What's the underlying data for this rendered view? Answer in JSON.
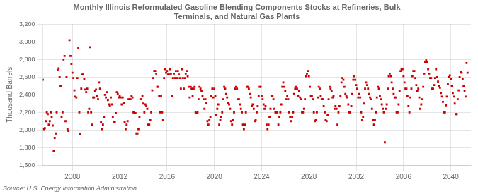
{
  "chart_data": {
    "type": "scatter",
    "title": "Monthly Illinois Reformulated Gasoline Blending Components Stocks at Refineries, Bulk\nTerminals, and Natural Gas Plants",
    "ylabel": "Thousand Barrels",
    "source": "Source: U.S. Energy Information Administration",
    "color": "#CC0000",
    "marker": "square",
    "grid": true,
    "xlim": [
      2005.5,
      2041.7
    ],
    "xticks": [
      2008,
      2012,
      2016,
      2020,
      2024,
      2028,
      2032,
      2036,
      2040
    ],
    "ylim": [
      1600,
      3200
    ],
    "yticks": [
      {
        "value": 1600,
        "label": "1,600"
      },
      {
        "value": 1800,
        "label": "1,800"
      },
      {
        "value": 2000,
        "label": "2,000"
      },
      {
        "value": 2200,
        "label": "2,200"
      },
      {
        "value": 2400,
        "label": "2,400"
      },
      {
        "value": 2600,
        "label": "2,600"
      },
      {
        "value": 2800,
        "label": "2,800"
      },
      {
        "value": 3000,
        "label": "3,000"
      },
      {
        "value": 3200,
        "label": "3,200"
      }
    ],
    "x": [
      2005.5,
      2005.5833333333333,
      2005.6666666666667,
      2005.75,
      2005.8333333333333,
      2005.9166666666667,
      2006,
      2006.0833333333333,
      2006.1666666666667,
      2006.25,
      2006.3333333333333,
      2006.4166666666667,
      2006.5,
      2006.5833333333333,
      2006.6666666666667,
      2006.75,
      2006.8333333333333,
      2006.9166666666667,
      2007,
      2007.0833333333333,
      2007.1666666666667,
      2007.25,
      2007.3333333333333,
      2007.4166666666667,
      2007.5,
      2007.5833333333333,
      2007.6666666666667,
      2007.75,
      2007.8333333333333,
      2007.9166666666667,
      2008,
      2008.0833333333333,
      2008.1666666666667,
      2008.25,
      2008.3333333333333,
      2008.4166666666667,
      2008.5,
      2008.5833333333333,
      2008.6666666666667,
      2008.75,
      2008.8333333333333,
      2008.9166666666667,
      2009,
      2009.0833333333333,
      2009.1666666666667,
      2009.25,
      2009.3333333333333,
      2009.4166666666667,
      2009.5,
      2009.5833333333333,
      2009.6666666666667,
      2009.75,
      2009.8333333333333,
      2009.9166666666667,
      2010,
      2010.0833333333333,
      2010.1666666666667,
      2010.25,
      2010.3333333333333,
      2010.4166666666667,
      2010.5,
      2010.5833333333333,
      2010.6666666666667,
      2010.75,
      2010.8333333333333,
      2010.9166666666667,
      2011,
      2011.0833333333333,
      2011.1666666666667,
      2011.25,
      2011.3333333333333,
      2011.4166666666667,
      2011.5,
      2011.5833333333333,
      2011.6666666666667,
      2011.75,
      2011.8333333333333,
      2011.9166666666667,
      2012,
      2012.0833333333333,
      2012.1666666666667,
      2012.25,
      2012.3333333333333,
      2012.4166666666667,
      2012.5,
      2012.5833333333333,
      2012.6666666666667,
      2012.75,
      2012.8333333333333,
      2012.9166666666667,
      2013,
      2013.0833333333333,
      2013.1666666666667,
      2013.25,
      2013.3333333333333,
      2013.4166666666667,
      2013.5,
      2013.5833333333333,
      2013.6666666666667,
      2013.75,
      2013.8333333333333,
      2013.9166666666667,
      2014,
      2014.0833333333333,
      2014.1666666666667,
      2014.25,
      2014.3333333333333,
      2014.4166666666667,
      2014.5,
      2014.5833333333333,
      2014.6666666666667,
      2014.75,
      2014.8333333333333,
      2014.9166666666667,
      2015,
      2015.0833333333333,
      2015.1666666666667,
      2015.25,
      2015.3333333333333,
      2015.4166666666667,
      2015.5,
      2015.5833333333333,
      2015.6666666666667,
      2015.75,
      2015.8333333333333,
      2015.9166666666667,
      2016,
      2016.0833333333333,
      2016.1666666666667,
      2016.25,
      2016.3333333333333,
      2016.4166666666667,
      2016.5,
      2016.5833333333333,
      2016.6666666666667,
      2016.75,
      2016.8333333333333,
      2016.9166666666667,
      2017,
      2017.0833333333333,
      2017.1666666666667,
      2017.25,
      2017.3333333333333,
      2017.4166666666667,
      2017.5,
      2017.5833333333333,
      2017.6666666666667,
      2017.75,
      2017.8333333333333,
      2017.9166666666667,
      2018,
      2018.0833333333333,
      2018.1666666666667,
      2018.25,
      2018.3333333333333,
      2018.4166666666667,
      2018.5,
      2018.5833333333333,
      2018.6666666666667,
      2018.75,
      2018.8333333333333,
      2018.9166666666667,
      2019,
      2019.0833333333333,
      2019.1666666666667,
      2019.25,
      2019.3333333333333,
      2019.4166666666667,
      2019.5,
      2019.5833333333333,
      2019.6666666666667,
      2019.75,
      2019.8333333333333,
      2019.9166666666667,
      2020,
      2020.0833333333333,
      2020.1666666666667,
      2020.25,
      2020.3333333333333,
      2020.4166666666667,
      2020.5,
      2020.5833333333333,
      2020.6666666666667,
      2020.75,
      2020.8333333333333,
      2020.9166666666667,
      2021,
      2021.0833333333333,
      2021.1666666666667,
      2021.25,
      2021.3333333333333,
      2021.4166666666667,
      2021.5,
      2021.5833333333333,
      2021.6666666666667,
      2021.75,
      2021.8333333333333,
      2021.9166666666667,
      2022,
      2022.0833333333333,
      2022.1666666666667,
      2022.25,
      2022.3333333333333,
      2022.4166666666667,
      2022.5,
      2022.5833333333333,
      2022.6666666666667,
      2022.75,
      2022.8333333333333,
      2022.9166666666667,
      2023,
      2023.0833333333333,
      2023.1666666666667,
      2023.25,
      2023.3333333333333,
      2023.4166666666667,
      2023.5,
      2023.5833333333333,
      2023.6666666666667,
      2023.75,
      2023.8333333333333,
      2023.9166666666667,
      2024,
      2024.0833333333333,
      2024.1666666666667,
      2024.25,
      2024.3333333333333,
      2024.4166666666667,
      2024.5,
      2024.5833333333333,
      2024.6666666666667,
      2024.75,
      2024.8333333333333,
      2024.9166666666667,
      2025,
      2025.0833333333333,
      2025.1666666666667,
      2025.25,
      2025.3333333333333,
      2025.4166666666667,
      2025.5,
      2025.5833333333333,
      2025.6666666666667,
      2025.75,
      2025.8333333333333,
      2025.9166666666667,
      2026,
      2026.0833333333333,
      2026.1666666666667,
      2026.25,
      2026.3333333333333,
      2026.4166666666667,
      2026.5,
      2026.5833333333333,
      2026.6666666666667,
      2026.75,
      2026.8333333333333,
      2026.9166666666667,
      2027,
      2027.0833333333333,
      2027.1666666666667,
      2027.25,
      2027.3333333333333,
      2027.4166666666667,
      2027.5,
      2027.5833333333333,
      2027.6666666666667,
      2027.75,
      2027.8333333333333,
      2027.9166666666667,
      2028,
      2028.0833333333333,
      2028.1666666666667,
      2028.25,
      2028.3333333333333,
      2028.4166666666667,
      2028.5,
      2028.5833333333333,
      2028.6666666666667,
      2028.75,
      2028.8333333333333,
      2028.9166666666667,
      2029,
      2029.0833333333333,
      2029.1666666666667,
      2029.25,
      2029.3333333333333,
      2029.4166666666667,
      2029.5,
      2029.5833333333333,
      2029.6666666666667,
      2029.75,
      2029.8333333333333,
      2029.9166666666667,
      2030,
      2030.0833333333333,
      2030.1666666666667,
      2030.25,
      2030.3333333333333,
      2030.4166666666667,
      2030.5,
      2030.5833333333333,
      2030.6666666666667,
      2030.75,
      2030.8333333333333,
      2030.9166666666667,
      2031,
      2031.0833333333333,
      2031.1666666666667,
      2031.25,
      2031.3333333333333,
      2031.4166666666667,
      2031.5,
      2031.5833333333333,
      2031.6666666666667,
      2031.75,
      2031.8333333333333,
      2031.9166666666667,
      2032,
      2032.0833333333333,
      2032.1666666666667,
      2032.25,
      2032.3333333333333,
      2032.4166666666667,
      2032.5,
      2032.5833333333333,
      2032.6666666666667,
      2032.75,
      2032.8333333333333,
      2032.9166666666667,
      2033,
      2033.0833333333333,
      2033.1666666666667,
      2033.25,
      2033.3333333333333,
      2033.4166666666667,
      2033.5,
      2033.5833333333333,
      2033.6666666666667,
      2033.75,
      2033.8333333333333,
      2033.9166666666667,
      2034,
      2034.0833333333333,
      2034.1666666666667,
      2034.25,
      2034.3333333333333,
      2034.4166666666667,
      2034.5,
      2034.5833333333333,
      2034.6666666666667,
      2034.75,
      2034.8333333333333,
      2034.9166666666667,
      2035,
      2035.0833333333333,
      2035.1666666666667,
      2035.25,
      2035.3333333333333,
      2035.4166666666667,
      2035.5,
      2035.5833333333333,
      2035.6666666666667,
      2035.75,
      2035.8333333333333,
      2035.9166666666667,
      2036,
      2036.0833333333333,
      2036.1666666666667,
      2036.25,
      2036.3333333333333,
      2036.4166666666667,
      2036.5,
      2036.5833333333333,
      2036.6666666666667,
      2036.75,
      2036.8333333333333,
      2036.9166666666667,
      2037,
      2037.0833333333333,
      2037.1666666666667,
      2037.25,
      2037.3333333333333,
      2037.4166666666667,
      2037.5,
      2037.5833333333333,
      2037.6666666666667,
      2037.75,
      2037.8333333333333,
      2037.9166666666667,
      2038,
      2038.0833333333333,
      2038.1666666666667,
      2038.25,
      2038.3333333333333,
      2038.4166666666667,
      2038.5,
      2038.5833333333333,
      2038.6666666666667,
      2038.75,
      2038.8333333333333,
      2038.9166666666667,
      2039,
      2039.0833333333333,
      2039.1666666666667,
      2039.25,
      2039.3333333333333,
      2039.4166666666667,
      2039.5,
      2039.5833333333333,
      2039.6666666666667,
      2039.75,
      2039.8333333333333,
      2039.9166666666667,
      2040,
      2040.0833333333333,
      2040.1666666666667,
      2040.25,
      2040.3333333333333,
      2040.4166666666667,
      2040.5,
      2040.5833333333333,
      2040.6666666666667,
      2040.75,
      2040.8333333333333,
      2040.9166666666667,
      2041,
      2041.0833333333333,
      2041.1666666666667,
      2041.25,
      2041.3333333333333,
      2041.4166666666667
    ],
    "values": [
      2570,
      2010,
      2020,
      2100,
      2200,
      2180,
      2060,
      2100,
      2200,
      2150,
      2050,
      1760,
      1910,
      1960,
      2200,
      2680,
      2700,
      2600,
      2500,
      2150,
      2200,
      2800,
      2840,
      2100,
      2600,
      2010,
      1990,
      3020,
      2840,
      2750,
      2650,
      2590,
      2450,
      2380,
      2370,
      2590,
      2930,
      2200,
      1950,
      2470,
      2630,
      2630,
      2580,
      2460,
      2430,
      2470,
      2200,
      2240,
      2940,
      2200,
      2060,
      2370,
      2370,
      2440,
      2460,
      2390,
      2350,
      2540,
      2470,
      2090,
      2010,
      2060,
      2150,
      2400,
      2370,
      2430,
      2340,
      2290,
      2270,
      2370,
      2290,
      2150,
      2090,
      2090,
      2190,
      2430,
      2410,
      2370,
      2390,
      2370,
      2290,
      2370,
      2310,
      2090,
      2010,
      2060,
      2100,
      2350,
      2350,
      2350,
      2390,
      2370,
      2200,
      2190,
      2190,
      1960,
      1960,
      2010,
      2150,
      2350,
      2350,
      2390,
      2300,
      2200,
      2290,
      2270,
      2240,
      2060,
      2060,
      2110,
      2200,
      2450,
      2590,
      2670,
      2670,
      2640,
      2490,
      2490,
      2390,
      2200,
      2390,
      2200,
      2110,
      2590,
      2690,
      2650,
      2670,
      2630,
      2630,
      2690,
      2640,
      2390,
      2590,
      2640,
      2590,
      2670,
      2590,
      2670,
      2630,
      2590,
      2470,
      2690,
      2590,
      2470,
      2590,
      2640,
      2670,
      2610,
      2490,
      2370,
      2490,
      2470,
      2390,
      2470,
      2490,
      2200,
      2190,
      2200,
      2350,
      2490,
      2470,
      2440,
      2390,
      2350,
      2240,
      2350,
      2310,
      2100,
      2060,
      2110,
      2150,
      2390,
      2470,
      2370,
      2470,
      2390,
      2170,
      2240,
      2290,
      2060,
      2110,
      2150,
      2200,
      2350,
      2490,
      2470,
      2410,
      2370,
      2310,
      2290,
      2240,
      2100,
      2060,
      2110,
      2200,
      2470,
      2490,
      2470,
      2350,
      2350,
      2290,
      2240,
      2200,
      2060,
      2010,
      2060,
      2200,
      2490,
      2490,
      2470,
      2410,
      2370,
      2270,
      2290,
      2240,
      2100,
      2110,
      2200,
      2270,
      2390,
      2490,
      2490,
      2390,
      2350,
      2290,
      2240,
      2270,
      2060,
      2010,
      2060,
      2150,
      2240,
      2390,
      2390,
      2350,
      2240,
      2200,
      2200,
      2200,
      2060,
      2150,
      2200,
      2290,
      2490,
      2540,
      2490,
      2440,
      2350,
      2390,
      2350,
      2200,
      2150,
      2100,
      2150,
      2200,
      2410,
      2470,
      2490,
      2470,
      2390,
      2440,
      2370,
      2350,
      2200,
      2200,
      2240,
      2350,
      2610,
      2640,
      2670,
      2610,
      2490,
      2390,
      2390,
      2350,
      2200,
      2100,
      2110,
      2200,
      2370,
      2490,
      2470,
      2390,
      2350,
      2350,
      2270,
      2200,
      2110,
      2100,
      2170,
      2350,
      2490,
      2470,
      2440,
      2370,
      2390,
      2240,
      2270,
      2240,
      2060,
      2200,
      2270,
      2390,
      2540,
      2590,
      2570,
      2490,
      2410,
      2390,
      2370,
      2290,
      2200,
      2200,
      2270,
      2410,
      2570,
      2610,
      2570,
      2510,
      2470,
      2370,
      2410,
      2370,
      2200,
      2110,
      2150,
      2300,
      2470,
      2540,
      2510,
      2470,
      2410,
      2370,
      2350,
      2240,
      2110,
      2060,
      2110,
      2200,
      2370,
      2490,
      2470,
      2390,
      2350,
      2290,
      2240,
      2200,
      1860,
      2240,
      2290,
      2470,
      2610,
      2640,
      2610,
      2540,
      2470,
      2410,
      2370,
      2370,
      2200,
      2200,
      2290,
      2440,
      2670,
      2690,
      2690,
      2610,
      2540,
      2470,
      2470,
      2390,
      2270,
      2200,
      2370,
      2470,
      2610,
      2670,
      2670,
      2590,
      2510,
      2440,
      2470,
      2370,
      2240,
      2290,
      2350,
      2490,
      2640,
      2770,
      2790,
      2770,
      2690,
      2640,
      2590,
      2590,
      2470,
      2470,
      2510,
      2590,
      2690,
      2600,
      2550,
      2500,
      2480,
      2420,
      2380,
      2320,
      2200,
      2200,
      2280,
      2380,
      2520,
      2600,
      2620,
      2580,
      2500,
      2420,
      2380,
      2300,
      2180,
      2180,
      2350,
      2450,
      2600,
      2660,
      2650,
      2580,
      2500,
      2440,
      2380,
      2760,
      2650
    ]
  }
}
